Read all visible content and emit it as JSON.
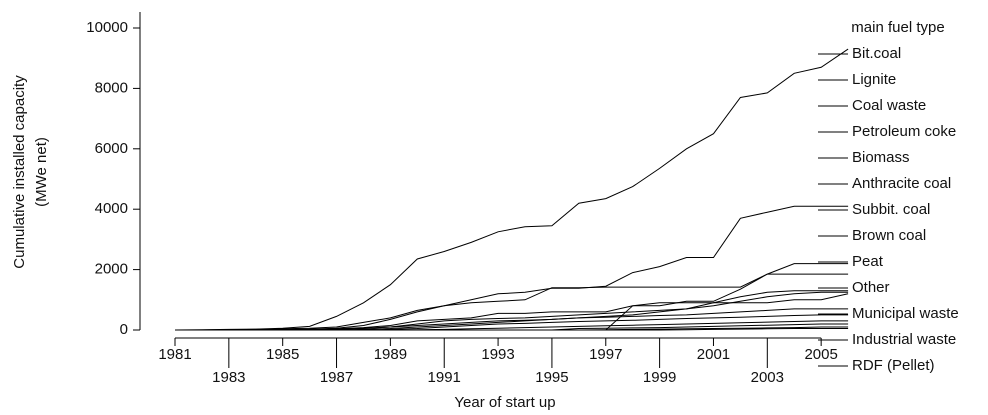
{
  "chart_data": {
    "type": "line",
    "ylabel": [
      "Cumulative installed capacity",
      "(MWe net)"
    ],
    "xlabel": "Year of start up",
    "legend_title": "main fuel type",
    "x": [
      1981,
      1982,
      1983,
      1984,
      1985,
      1986,
      1987,
      1988,
      1989,
      1990,
      1991,
      1992,
      1993,
      1994,
      1995,
      1996,
      1997,
      1998,
      1999,
      2000,
      2001,
      2002,
      2003,
      2004,
      2005,
      2006
    ],
    "xlim": [
      1979.7,
      2007
    ],
    "xticks": [
      1981,
      1983,
      1985,
      1987,
      1989,
      1991,
      1993,
      1995,
      1997,
      1999,
      2001,
      2003,
      2005
    ],
    "ylim": [
      0,
      10000
    ],
    "yticks": [
      0,
      2000,
      4000,
      6000,
      8000,
      10000
    ],
    "series": [
      {
        "name": "Bit.coal",
        "color": "#000000",
        "values": [
          0,
          10,
          20,
          30,
          60,
          120,
          450,
          900,
          1500,
          2350,
          2600,
          2900,
          3250,
          3420,
          3450,
          4200,
          4350,
          4750,
          5350,
          6000,
          6500,
          7700,
          7850,
          8500,
          8700,
          9300
        ]
      },
      {
        "name": "Lignite",
        "color": "#000000",
        "values": [
          0,
          0,
          10,
          20,
          40,
          60,
          100,
          250,
          400,
          650,
          800,
          1000,
          1200,
          1250,
          1380,
          1380,
          1450,
          1900,
          2100,
          2400,
          2400,
          3700,
          3900,
          4100,
          4100,
          4100
        ]
      },
      {
        "name": "Coal waste",
        "color": "#000000",
        "values": [
          0,
          0,
          0,
          10,
          20,
          30,
          60,
          150,
          350,
          600,
          800,
          900,
          950,
          1000,
          1400,
          1400,
          1420,
          1420,
          1420,
          1420,
          1420,
          1420,
          1850,
          2200,
          2200,
          2200
        ]
      },
      {
        "name": "Petroleum coke",
        "color": "#000000",
        "values": [
          0,
          0,
          0,
          0,
          10,
          20,
          40,
          80,
          150,
          300,
          350,
          400,
          550,
          550,
          600,
          600,
          600,
          800,
          800,
          950,
          950,
          1350,
          1850,
          1850,
          1850,
          1850
        ]
      },
      {
        "name": "Biomass",
        "color": "#000000",
        "values": [
          0,
          0,
          0,
          0,
          0,
          10,
          30,
          60,
          100,
          200,
          300,
          350,
          380,
          400,
          450,
          500,
          550,
          600,
          650,
          700,
          900,
          1100,
          1250,
          1300,
          1300,
          1300
        ]
      },
      {
        "name": "Anthracite coal",
        "color": "#000000",
        "values": [
          0,
          0,
          0,
          0,
          0,
          0,
          20,
          50,
          100,
          150,
          200,
          250,
          300,
          320,
          350,
          400,
          450,
          500,
          600,
          700,
          800,
          950,
          1100,
          1200,
          1250,
          1250
        ]
      },
      {
        "name": "Subbit. coal",
        "color": "#000000",
        "values": [
          0,
          0,
          0,
          0,
          0,
          0,
          0,
          0,
          0,
          0,
          0,
          0,
          0,
          0,
          0,
          0,
          0,
          800,
          900,
          900,
          900,
          900,
          900,
          1000,
          1000,
          1200
        ]
      },
      {
        "name": "Brown coal",
        "color": "#000000",
        "values": [
          0,
          0,
          0,
          0,
          0,
          0,
          0,
          20,
          50,
          100,
          150,
          200,
          250,
          300,
          350,
          400,
          420,
          450,
          480,
          500,
          550,
          600,
          650,
          700,
          700,
          700
        ]
      },
      {
        "name": "Peat",
        "color": "#000000",
        "values": [
          0,
          0,
          0,
          0,
          0,
          0,
          0,
          0,
          20,
          50,
          100,
          150,
          200,
          220,
          250,
          280,
          300,
          320,
          350,
          380,
          400,
          420,
          450,
          480,
          500,
          500
        ]
      },
      {
        "name": "Other",
        "color": "#000000",
        "values": [
          0,
          0,
          0,
          0,
          0,
          0,
          0,
          0,
          0,
          10,
          20,
          40,
          60,
          80,
          100,
          120,
          140,
          160,
          180,
          200,
          220,
          240,
          260,
          280,
          300,
          300
        ]
      },
      {
        "name": "Municipal waste",
        "color": "#000000",
        "values": [
          0,
          0,
          0,
          0,
          0,
          0,
          0,
          0,
          0,
          0,
          0,
          0,
          0,
          0,
          0,
          50,
          60,
          70,
          80,
          100,
          120,
          140,
          160,
          180,
          200,
          200
        ]
      },
      {
        "name": "Industrial waste",
        "color": "#000000",
        "values": [
          0,
          0,
          0,
          0,
          0,
          0,
          0,
          0,
          0,
          0,
          0,
          0,
          0,
          0,
          0,
          0,
          10,
          20,
          30,
          40,
          50,
          60,
          70,
          80,
          100,
          100
        ]
      },
      {
        "name": "RDF (Pellet)",
        "color": "#000000",
        "values": [
          0,
          0,
          0,
          0,
          0,
          0,
          0,
          0,
          0,
          0,
          0,
          0,
          0,
          0,
          0,
          0,
          0,
          0,
          0,
          10,
          20,
          30,
          40,
          50,
          50,
          50
        ]
      }
    ]
  }
}
